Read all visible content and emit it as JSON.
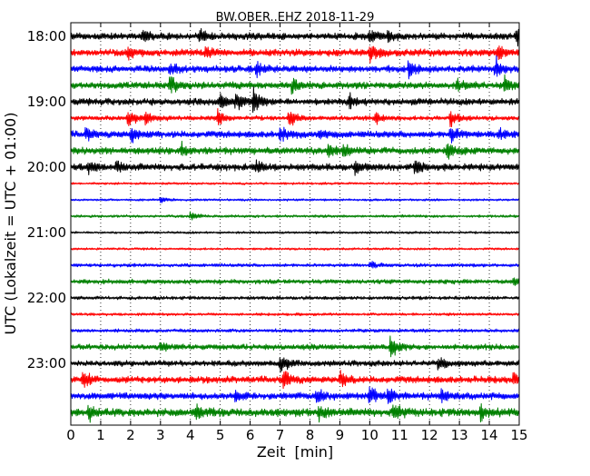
{
  "chart_data": {
    "type": "line",
    "title": "BW.OBER..EHZ 2018-11-29",
    "xlabel": "Zeit  [min]",
    "ylabel": "UTC (Lokalzeit = UTC + 01:00)",
    "xlim": [
      0,
      15
    ],
    "x_ticks": [
      "0",
      "1",
      "2",
      "3",
      "4",
      "5",
      "6",
      "7",
      "8",
      "9",
      "10",
      "11",
      "12",
      "13",
      "14",
      "15"
    ],
    "y_ticks": [
      "18:00",
      "19:00",
      "20:00",
      "21:00",
      "22:00",
      "23:00"
    ],
    "grid": "vertical dotted",
    "colors": [
      "#000000",
      "#ff0000",
      "#0000ff",
      "#008000"
    ],
    "trace_interval_min": 15,
    "first_trace": "18:00",
    "series": [
      {
        "start": "18:00",
        "color": "#000000",
        "noise": 3
      },
      {
        "start": "18:15",
        "color": "#ff0000",
        "noise": 3
      },
      {
        "start": "18:30",
        "color": "#0000ff",
        "noise": 3
      },
      {
        "start": "18:45",
        "color": "#008000",
        "noise": 3
      },
      {
        "start": "19:00",
        "color": "#000000",
        "noise": 3
      },
      {
        "start": "19:15",
        "color": "#ff0000",
        "noise": 2
      },
      {
        "start": "19:30",
        "color": "#0000ff",
        "noise": 3
      },
      {
        "start": "19:45",
        "color": "#008000",
        "noise": 3
      },
      {
        "start": "20:00",
        "color": "#000000",
        "noise": 3
      },
      {
        "start": "20:15",
        "color": "#ff0000",
        "noise": 1
      },
      {
        "start": "20:30",
        "color": "#0000ff",
        "noise": 1
      },
      {
        "start": "20:45",
        "color": "#008000",
        "noise": 1.2
      },
      {
        "start": "21:00",
        "color": "#000000",
        "noise": 1
      },
      {
        "start": "21:15",
        "color": "#ff0000",
        "noise": 1
      },
      {
        "start": "21:30",
        "color": "#0000ff",
        "noise": 1.5
      },
      {
        "start": "21:45",
        "color": "#008000",
        "noise": 2
      },
      {
        "start": "22:00",
        "color": "#000000",
        "noise": 1.5
      },
      {
        "start": "22:15",
        "color": "#ff0000",
        "noise": 1.2
      },
      {
        "start": "22:30",
        "color": "#0000ff",
        "noise": 1.5
      },
      {
        "start": "22:45",
        "color": "#008000",
        "noise": 2.5
      },
      {
        "start": "23:00",
        "color": "#000000",
        "noise": 2.5
      },
      {
        "start": "23:15",
        "color": "#ff0000",
        "noise": 3
      },
      {
        "start": "23:30",
        "color": "#0000ff",
        "noise": 3
      },
      {
        "start": "23:45",
        "color": "#008000",
        "noise": 3.5
      }
    ],
    "events": [
      [
        0,
        2.4,
        6
      ],
      [
        0,
        4.3,
        7
      ],
      [
        0,
        10.0,
        8
      ],
      [
        0,
        10.6,
        6
      ],
      [
        0,
        14.9,
        8
      ],
      [
        1,
        1.9,
        8
      ],
      [
        1,
        4.5,
        7
      ],
      [
        1,
        10.0,
        9
      ],
      [
        1,
        14.3,
        10
      ],
      [
        2,
        3.3,
        7
      ],
      [
        2,
        6.2,
        8
      ],
      [
        2,
        11.3,
        9
      ],
      [
        2,
        14.2,
        11
      ],
      [
        3,
        3.3,
        12
      ],
      [
        3,
        7.4,
        9
      ],
      [
        3,
        12.9,
        8
      ],
      [
        3,
        14.5,
        8
      ],
      [
        4,
        5.0,
        9
      ],
      [
        4,
        5.5,
        10
      ],
      [
        4,
        6.1,
        12
      ],
      [
        4,
        9.3,
        8
      ],
      [
        5,
        1.9,
        10
      ],
      [
        5,
        2.5,
        8
      ],
      [
        5,
        4.9,
        10
      ],
      [
        5,
        7.3,
        10
      ],
      [
        5,
        10.2,
        8
      ],
      [
        5,
        12.7,
        10
      ],
      [
        6,
        0.5,
        7
      ],
      [
        6,
        2.0,
        9
      ],
      [
        6,
        7.0,
        9
      ],
      [
        6,
        8.3,
        6
      ],
      [
        6,
        12.7,
        11
      ],
      [
        6,
        14.3,
        7
      ],
      [
        7,
        3.7,
        8
      ],
      [
        7,
        8.6,
        8
      ],
      [
        7,
        9.1,
        8
      ],
      [
        7,
        12.6,
        12
      ],
      [
        8,
        0.6,
        7
      ],
      [
        8,
        1.5,
        7
      ],
      [
        8,
        6.2,
        6
      ],
      [
        8,
        9.5,
        7
      ],
      [
        8,
        11.5,
        8
      ],
      [
        10,
        3.0,
        3
      ],
      [
        11,
        4.0,
        5
      ],
      [
        14,
        10.0,
        5
      ],
      [
        15,
        14.8,
        5
      ],
      [
        19,
        10.7,
        12
      ],
      [
        19,
        3.0,
        5
      ],
      [
        20,
        7.0,
        10
      ],
      [
        20,
        12.3,
        7
      ],
      [
        21,
        0.4,
        9
      ],
      [
        21,
        7.1,
        12
      ],
      [
        21,
        9.0,
        8
      ],
      [
        21,
        14.8,
        9
      ],
      [
        22,
        5.5,
        7
      ],
      [
        22,
        8.2,
        8
      ],
      [
        22,
        10.0,
        10
      ],
      [
        22,
        10.6,
        11
      ],
      [
        22,
        12.4,
        8
      ],
      [
        23,
        0.6,
        9
      ],
      [
        23,
        4.2,
        10
      ],
      [
        23,
        8.3,
        9
      ],
      [
        23,
        10.8,
        12
      ],
      [
        23,
        13.7,
        8
      ]
    ]
  }
}
